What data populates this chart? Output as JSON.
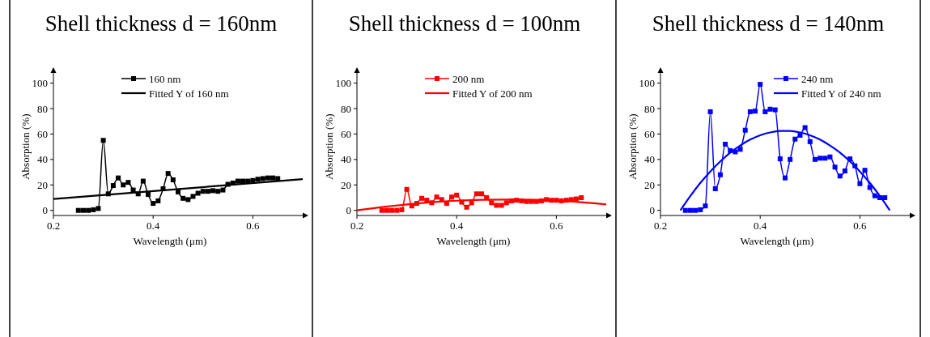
{
  "chart_data": [
    {
      "type": "line",
      "title": "Shell thickness d = 160nm",
      "xlabel": "Wavelength (μm)",
      "ylabel": "Absorption (%)",
      "xlim": [
        0.2,
        0.7
      ],
      "ylim": [
        -4,
        108
      ],
      "xticks": [
        0.2,
        0.4,
        0.6
      ],
      "yticks": [
        0,
        20,
        40,
        60,
        80,
        100
      ],
      "grid": false,
      "legend": "top",
      "marker": "square",
      "line_style": "solid",
      "series": [
        {
          "name": "160 nm",
          "color": "#000000",
          "x": [
            0.25,
            0.26,
            0.27,
            0.28,
            0.29,
            0.3,
            0.31,
            0.32,
            0.33,
            0.34,
            0.35,
            0.36,
            0.37,
            0.38,
            0.39,
            0.4,
            0.41,
            0.42,
            0.43,
            0.44,
            0.45,
            0.46,
            0.47,
            0.48,
            0.49,
            0.5,
            0.51,
            0.52,
            0.53,
            0.54,
            0.55,
            0.56,
            0.57,
            0.58,
            0.59,
            0.6,
            0.61,
            0.62,
            0.63,
            0.64,
            0.65
          ],
          "values": [
            0,
            0,
            0,
            0.5,
            1.5,
            55,
            13,
            19.5,
            25.5,
            20,
            22,
            16,
            13,
            23,
            12.5,
            5.5,
            7.5,
            17,
            29,
            24,
            14.5,
            9.5,
            8.5,
            11,
            13.5,
            15,
            15,
            15.5,
            15,
            16,
            20.5,
            21.5,
            23,
            23,
            23,
            23.5,
            24.5,
            25,
            25.5,
            25.5,
            25
          ]
        },
        {
          "name": "Fitted Y of 160 nm",
          "color": "#000000",
          "marker": "none",
          "x": [
            0.2,
            0.7
          ],
          "values": [
            9,
            24.5
          ]
        }
      ]
    },
    {
      "type": "line",
      "title": "Shell thickness d = 100nm",
      "xlabel": "Wavelength (μm)",
      "ylabel": "Absorption (%)",
      "xlim": [
        0.2,
        0.7
      ],
      "ylim": [
        -4,
        108
      ],
      "xticks": [
        0.2,
        0.4,
        0.6
      ],
      "yticks": [
        0,
        20,
        40,
        60,
        80,
        100
      ],
      "grid": false,
      "legend": "top",
      "marker": "square",
      "line_style": "solid",
      "series": [
        {
          "name": "200 nm",
          "color": "#ff0000",
          "x": [
            0.25,
            0.26,
            0.27,
            0.28,
            0.29,
            0.3,
            0.31,
            0.32,
            0.33,
            0.34,
            0.35,
            0.36,
            0.37,
            0.38,
            0.39,
            0.4,
            0.41,
            0.42,
            0.43,
            0.44,
            0.45,
            0.46,
            0.47,
            0.48,
            0.49,
            0.5,
            0.51,
            0.52,
            0.53,
            0.54,
            0.55,
            0.56,
            0.57,
            0.58,
            0.59,
            0.6,
            0.61,
            0.62,
            0.63,
            0.64,
            0.65
          ],
          "values": [
            0,
            0,
            0,
            0,
            0.5,
            16.5,
            3.5,
            5.5,
            9.5,
            8,
            6,
            10.5,
            8.5,
            5.5,
            10.5,
            12,
            6.5,
            2.5,
            6,
            13,
            13,
            10,
            6,
            4,
            4,
            6,
            7.5,
            8,
            7.5,
            7,
            7,
            7,
            7.5,
            8.5,
            8,
            8,
            7.5,
            8,
            8.5,
            9,
            10
          ]
        },
        {
          "name": "Fitted Y of 200 nm",
          "color": "#ff0000",
          "marker": "none",
          "x": [
            0.2,
            0.25,
            0.3,
            0.35,
            0.4,
            0.45,
            0.5,
            0.55,
            0.6,
            0.65,
            0.7
          ],
          "values": [
            0,
            2.6,
            4.7,
            6.4,
            7.6,
            8.3,
            8.5,
            8.3,
            7.6,
            6.4,
            4.7
          ]
        }
      ]
    },
    {
      "type": "line",
      "title": "Shell thickness d = 140nm",
      "xlabel": "Wavelength (μm)",
      "ylabel": "Absorption (%)",
      "xlim": [
        0.2,
        0.7
      ],
      "ylim": [
        -4,
        108
      ],
      "xticks": [
        0.2,
        0.4,
        0.6
      ],
      "yticks": [
        0,
        20,
        40,
        60,
        80,
        100
      ],
      "grid": false,
      "legend": "top right",
      "marker": "square",
      "line_style": "solid",
      "series": [
        {
          "name": "240 nm",
          "color": "#0000ff",
          "x": [
            0.25,
            0.26,
            0.27,
            0.28,
            0.29,
            0.3,
            0.31,
            0.32,
            0.33,
            0.34,
            0.35,
            0.36,
            0.37,
            0.38,
            0.39,
            0.4,
            0.41,
            0.42,
            0.43,
            0.44,
            0.45,
            0.46,
            0.47,
            0.48,
            0.49,
            0.5,
            0.51,
            0.52,
            0.53,
            0.54,
            0.55,
            0.56,
            0.57,
            0.58,
            0.59,
            0.6,
            0.61,
            0.62,
            0.63,
            0.64,
            0.65
          ],
          "values": [
            0,
            0,
            0,
            0.5,
            3.5,
            77.5,
            17,
            28,
            52,
            47,
            46,
            48,
            63,
            77.5,
            78,
            99,
            77.5,
            79.5,
            79,
            40.5,
            25.5,
            40,
            56,
            59,
            65,
            54,
            40,
            41,
            41,
            42,
            34,
            27,
            31,
            40.5,
            35,
            21,
            31.5,
            18,
            11.5,
            10,
            10
          ]
        },
        {
          "name": "Fitted Y of 240 nm",
          "color": "#0000ff",
          "marker": "none",
          "x": [
            0.24,
            0.26,
            0.28,
            0.3,
            0.32,
            0.34,
            0.36,
            0.38,
            0.4,
            0.42,
            0.44,
            0.46,
            0.48,
            0.5,
            0.52,
            0.54,
            0.56,
            0.58,
            0.6,
            0.62,
            0.64,
            0.66
          ],
          "values": [
            0,
            11.3,
            21.6,
            30.6,
            38.5,
            45.4,
            51,
            55.6,
            59,
            61.2,
            62.4,
            62.4,
            61.2,
            59,
            55.6,
            51,
            45.4,
            38.5,
            30.6,
            21.6,
            11.3,
            0
          ]
        }
      ]
    }
  ]
}
